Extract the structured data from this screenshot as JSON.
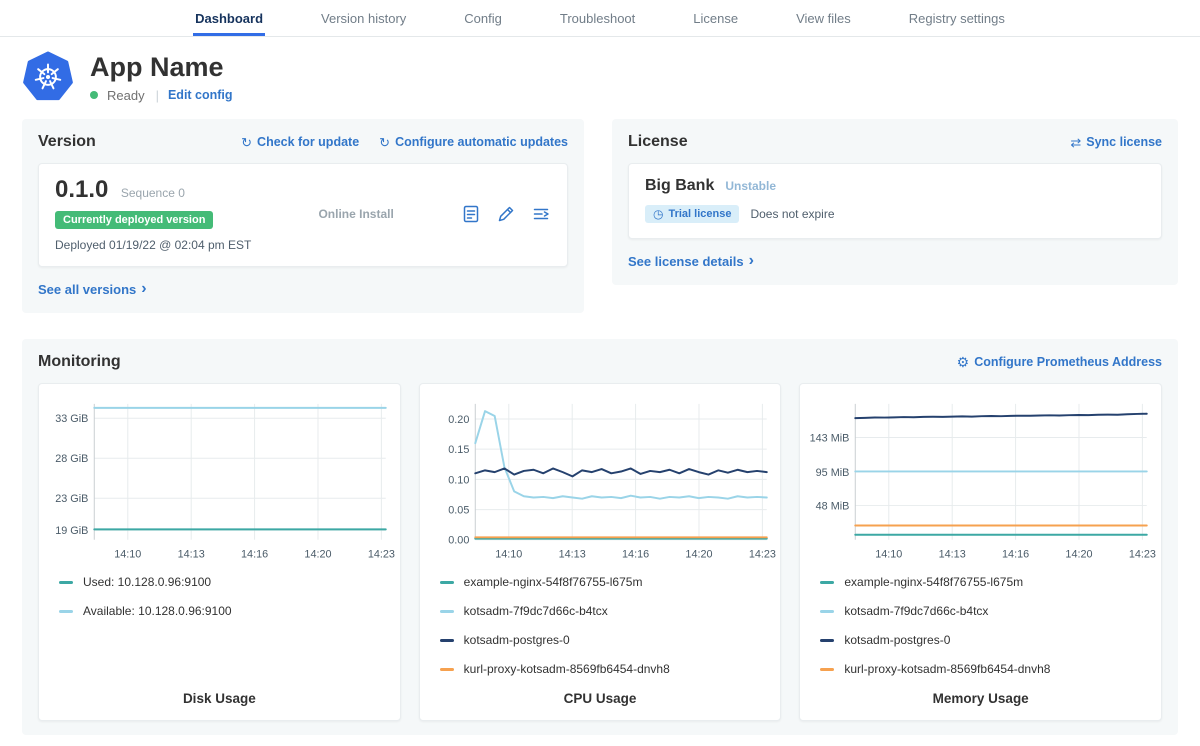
{
  "nav": {
    "tabs": [
      {
        "label": "Dashboard"
      },
      {
        "label": "Version history"
      },
      {
        "label": "Config"
      },
      {
        "label": "Troubleshoot"
      },
      {
        "label": "License"
      },
      {
        "label": "View files"
      },
      {
        "label": "Registry settings"
      }
    ]
  },
  "app": {
    "name": "App Name",
    "status": "Ready",
    "edit_config": "Edit config"
  },
  "version": {
    "title": "Version",
    "check_for_update": "Check for update",
    "configure_automatic_updates": "Configure automatic updates",
    "version_number": "0.1.0",
    "sequence": "Sequence 0",
    "deployed_badge": "Currently deployed version",
    "install_type": "Online Install",
    "deployed_at": "Deployed 01/19/22 @ 02:04 pm EST",
    "see_all_versions": "See all versions"
  },
  "license": {
    "title": "License",
    "sync_license": "Sync license",
    "customer_name": "Big Bank",
    "channel": "Unstable",
    "trial_badge": "Trial license",
    "expiration": "Does not expire",
    "see_license_details": "See license details"
  },
  "monitoring": {
    "title": "Monitoring",
    "configure_prometheus": "Configure Prometheus Address"
  },
  "icons": {
    "check_update": "↻",
    "auto_update": "↻",
    "sync": "⇄",
    "gear": "⚙",
    "clock": "◷",
    "chevron": "›",
    "status_dot": "●"
  },
  "colors": {
    "accent_blue": "#3276c9",
    "active_tab_blue": "#326de6",
    "success_green": "#44bb77",
    "teal": "#3ca8a4",
    "light_blue": "#9ad4e8",
    "navy": "#25416e",
    "orange": "#f6a14f"
  },
  "chart_data": [
    {
      "type": "line",
      "title": "Disk Usage",
      "ylim": [
        17.8,
        34.8
      ],
      "y_ticks": [
        {
          "label": "33 GiB",
          "value": 33
        },
        {
          "label": "28 GiB",
          "value": 28
        },
        {
          "label": "23 GiB",
          "value": 23
        },
        {
          "label": "19 GiB",
          "value": 19
        }
      ],
      "x_ticks": [
        "14:10",
        "14:13",
        "14:16",
        "14:20",
        "14:23"
      ],
      "series": [
        {
          "name": "Used: 10.128.0.96:9100",
          "color": "#3ca8a4",
          "values": [
            19.1,
            19.1
          ]
        },
        {
          "name": "Available: 10.128.0.96:9100",
          "color": "#9ad4e8",
          "values": [
            34.3,
            34.3
          ]
        }
      ]
    },
    {
      "type": "line",
      "title": "CPU Usage",
      "ylim": [
        0,
        0.225
      ],
      "y_ticks": [
        {
          "label": "0.20",
          "value": 0.2
        },
        {
          "label": "0.15",
          "value": 0.15
        },
        {
          "label": "0.10",
          "value": 0.1
        },
        {
          "label": "0.05",
          "value": 0.05
        },
        {
          "label": "0.00",
          "value": 0.0
        }
      ],
      "x_ticks": [
        "14:10",
        "14:13",
        "14:16",
        "14:20",
        "14:23"
      ],
      "series": [
        {
          "name": "example-nginx-54f8f76755-l675m",
          "color": "#3ca8a4",
          "values": [
            0.002,
            0.002
          ]
        },
        {
          "name": "kotsadm-7f9dc7d66c-b4tcx",
          "color": "#9ad4e8",
          "values": [
            0.16,
            0.213,
            0.205,
            0.12,
            0.08,
            0.072,
            0.07,
            0.071,
            0.069,
            0.072,
            0.07,
            0.068,
            0.072,
            0.07,
            0.071,
            0.069,
            0.073,
            0.07,
            0.071,
            0.068,
            0.071,
            0.07,
            0.072,
            0.069,
            0.071,
            0.07,
            0.068,
            0.072,
            0.07,
            0.071,
            0.07
          ]
        },
        {
          "name": "kotsadm-postgres-0",
          "color": "#25416e",
          "values": [
            0.11,
            0.115,
            0.112,
            0.118,
            0.108,
            0.114,
            0.116,
            0.11,
            0.118,
            0.112,
            0.105,
            0.115,
            0.112,
            0.117,
            0.11,
            0.113,
            0.118,
            0.109,
            0.114,
            0.112,
            0.116,
            0.11,
            0.117,
            0.112,
            0.108,
            0.115,
            0.111,
            0.116,
            0.112,
            0.114,
            0.112
          ]
        },
        {
          "name": "kurl-proxy-kotsadm-8569fb6454-dnvh8",
          "color": "#f6a14f",
          "values": [
            0.004,
            0.004
          ]
        }
      ]
    },
    {
      "type": "line",
      "title": "Memory Usage",
      "ylim": [
        0,
        190
      ],
      "y_ticks": [
        {
          "label": "143 MiB",
          "value": 143
        },
        {
          "label": "95 MiB",
          "value": 95
        },
        {
          "label": "48 MiB",
          "value": 48
        }
      ],
      "x_ticks": [
        "14:10",
        "14:13",
        "14:16",
        "14:20",
        "14:23"
      ],
      "series": [
        {
          "name": "example-nginx-54f8f76755-l675m",
          "color": "#3ca8a4",
          "values": [
            7,
            7
          ]
        },
        {
          "name": "kotsadm-7f9dc7d66c-b4tcx",
          "color": "#9ad4e8",
          "values": [
            95.5,
            95.5
          ]
        },
        {
          "name": "kotsadm-postgres-0",
          "color": "#25416e",
          "values": [
            170,
            170.5,
            171,
            170.8,
            171.2,
            171.5,
            171.3,
            171.8,
            172,
            171.8,
            172.2,
            172.5,
            172.3,
            172.8,
            173,
            172.8,
            173.2,
            173.5,
            173.3,
            173.8,
            174,
            173.8,
            174.2,
            174.5,
            174.3,
            174.8,
            175,
            174.8,
            175.5,
            176,
            176.2
          ]
        },
        {
          "name": "kurl-proxy-kotsadm-8569fb6454-dnvh8",
          "color": "#f6a14f",
          "values": [
            20,
            20
          ]
        }
      ]
    }
  ]
}
